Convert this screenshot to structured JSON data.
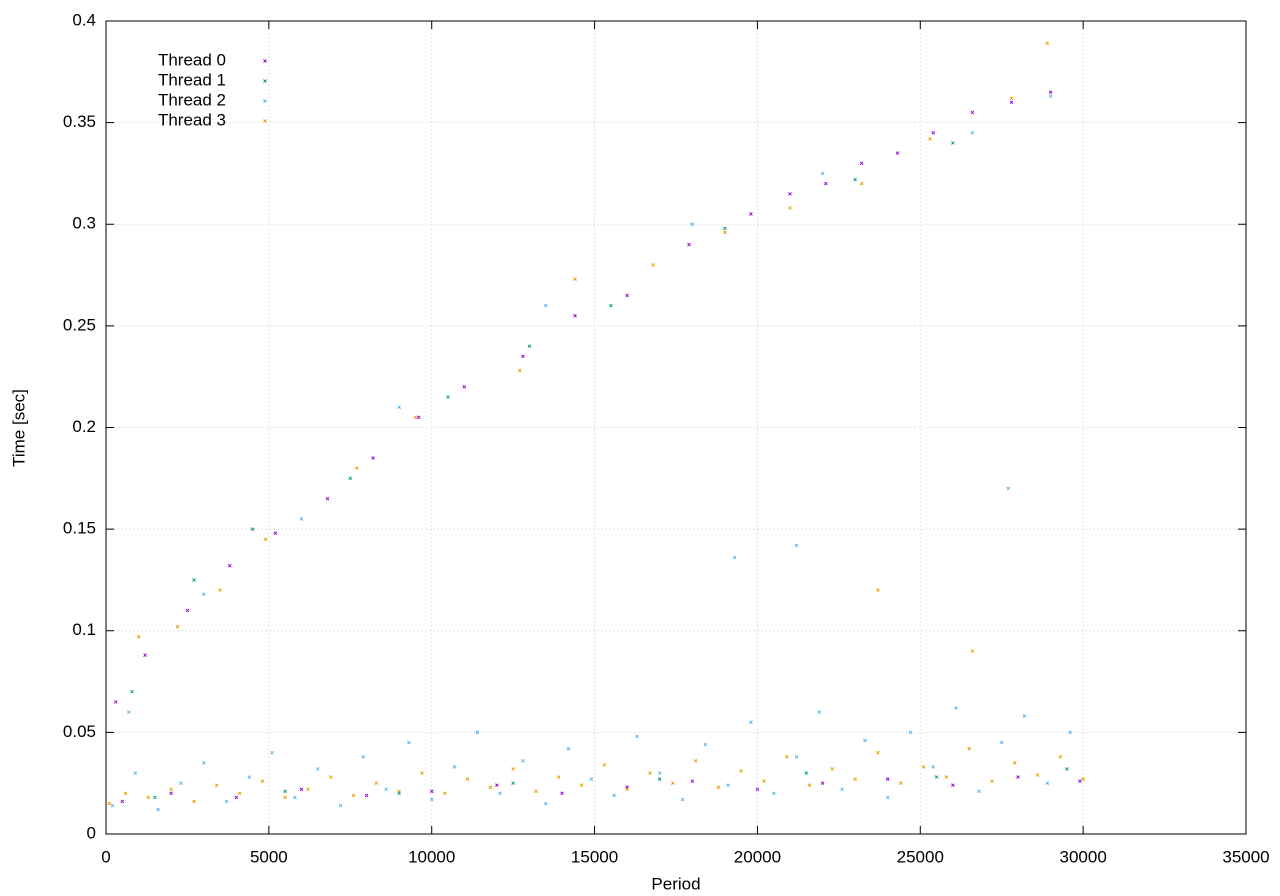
{
  "chart_data": {
    "type": "scatter",
    "xlabel": "Period",
    "ylabel": "Time [sec]",
    "xlim": [
      0,
      35000
    ],
    "ylim": [
      0,
      0.4
    ],
    "xticks": [
      0,
      5000,
      10000,
      15000,
      20000,
      25000,
      30000,
      35000
    ],
    "yticks": [
      0,
      0.05,
      0.1,
      0.15,
      0.2,
      0.25,
      0.3,
      0.35,
      0.4
    ],
    "grid": true,
    "legend": "upper-left",
    "series": [
      {
        "name": "Thread 0",
        "color": "#9400d3",
        "x": [
          300,
          1200,
          2500,
          3800,
          5200,
          6800,
          8200,
          9600,
          11000,
          12800,
          14400,
          16000,
          17900,
          19800,
          21000,
          22100,
          23200,
          24300,
          25400,
          26600,
          27800,
          29000,
          500,
          2000,
          4000,
          6000,
          8000,
          10000,
          12000,
          14000,
          16000,
          18000,
          20000,
          22000,
          24000,
          26000,
          28000,
          29900
        ],
        "values": [
          0.065,
          0.088,
          0.11,
          0.132,
          0.148,
          0.165,
          0.185,
          0.205,
          0.22,
          0.235,
          0.255,
          0.265,
          0.29,
          0.305,
          0.315,
          0.32,
          0.33,
          0.335,
          0.345,
          0.355,
          0.36,
          0.365,
          0.016,
          0.02,
          0.018,
          0.022,
          0.019,
          0.021,
          0.024,
          0.02,
          0.023,
          0.026,
          0.022,
          0.025,
          0.027,
          0.024,
          0.028,
          0.026
        ]
      },
      {
        "name": "Thread 1",
        "color": "#009e73",
        "x": [
          800,
          2700,
          4500,
          7500,
          10500,
          13000,
          15500,
          19000,
          23000,
          26000,
          1500,
          5500,
          9000,
          12500,
          17000,
          21500,
          25500,
          29500
        ],
        "values": [
          0.07,
          0.125,
          0.15,
          0.175,
          0.215,
          0.24,
          0.26,
          0.298,
          0.322,
          0.34,
          0.018,
          0.021,
          0.02,
          0.025,
          0.027,
          0.03,
          0.028,
          0.032
        ]
      },
      {
        "name": "Thread 2",
        "color": "#56b4e9",
        "x": [
          700,
          3000,
          6000,
          9000,
          13500,
          18000,
          22000,
          26600,
          29000,
          19300,
          21200,
          27700,
          200,
          900,
          1600,
          2300,
          3000,
          3700,
          4400,
          5100,
          5800,
          6500,
          7200,
          7900,
          8600,
          9300,
          10000,
          10700,
          11400,
          12100,
          12800,
          13500,
          14200,
          14900,
          15600,
          16300,
          17000,
          17700,
          18400,
          19100,
          19800,
          20500,
          21200,
          21900,
          22600,
          23300,
          24000,
          24700,
          25400,
          26100,
          26800,
          27500,
          28200,
          28900,
          29600
        ],
        "values": [
          0.06,
          0.118,
          0.155,
          0.21,
          0.26,
          0.3,
          0.325,
          0.345,
          0.363,
          0.136,
          0.142,
          0.17,
          0.014,
          0.03,
          0.012,
          0.025,
          0.035,
          0.016,
          0.028,
          0.04,
          0.018,
          0.032,
          0.014,
          0.038,
          0.022,
          0.045,
          0.017,
          0.033,
          0.05,
          0.02,
          0.036,
          0.015,
          0.042,
          0.027,
          0.019,
          0.048,
          0.03,
          0.017,
          0.044,
          0.024,
          0.055,
          0.02,
          0.038,
          0.06,
          0.022,
          0.046,
          0.018,
          0.05,
          0.033,
          0.062,
          0.021,
          0.045,
          0.058,
          0.025,
          0.05
        ]
      },
      {
        "name": "Thread 3",
        "color": "#e69f00",
        "x": [
          1000,
          2200,
          3500,
          4900,
          7700,
          9500,
          12700,
          14400,
          16800,
          19000,
          21000,
          23200,
          25300,
          27800,
          28900,
          23700,
          26600,
          100,
          600,
          1300,
          2000,
          2700,
          3400,
          4100,
          4800,
          5500,
          6200,
          6900,
          7600,
          8300,
          9000,
          9700,
          10400,
          11100,
          11800,
          12500,
          13200,
          13900,
          14600,
          15300,
          16000,
          16700,
          17400,
          18100,
          18800,
          19500,
          20200,
          20900,
          21600,
          22300,
          23000,
          23700,
          24400,
          25100,
          25800,
          26500,
          27200,
          27900,
          28600,
          29300,
          30000
        ],
        "values": [
          0.097,
          0.102,
          0.12,
          0.145,
          0.18,
          0.205,
          0.228,
          0.273,
          0.28,
          0.296,
          0.308,
          0.32,
          0.342,
          0.362,
          0.389,
          0.12,
          0.09,
          0.015,
          0.02,
          0.018,
          0.022,
          0.016,
          0.024,
          0.02,
          0.026,
          0.018,
          0.022,
          0.028,
          0.019,
          0.025,
          0.021,
          0.03,
          0.02,
          0.027,
          0.023,
          0.032,
          0.021,
          0.028,
          0.024,
          0.034,
          0.022,
          0.03,
          0.025,
          0.036,
          0.023,
          0.031,
          0.026,
          0.038,
          0.024,
          0.032,
          0.027,
          0.04,
          0.025,
          0.033,
          0.028,
          0.042,
          0.026,
          0.035,
          0.029,
          0.038,
          0.027
        ]
      }
    ]
  }
}
